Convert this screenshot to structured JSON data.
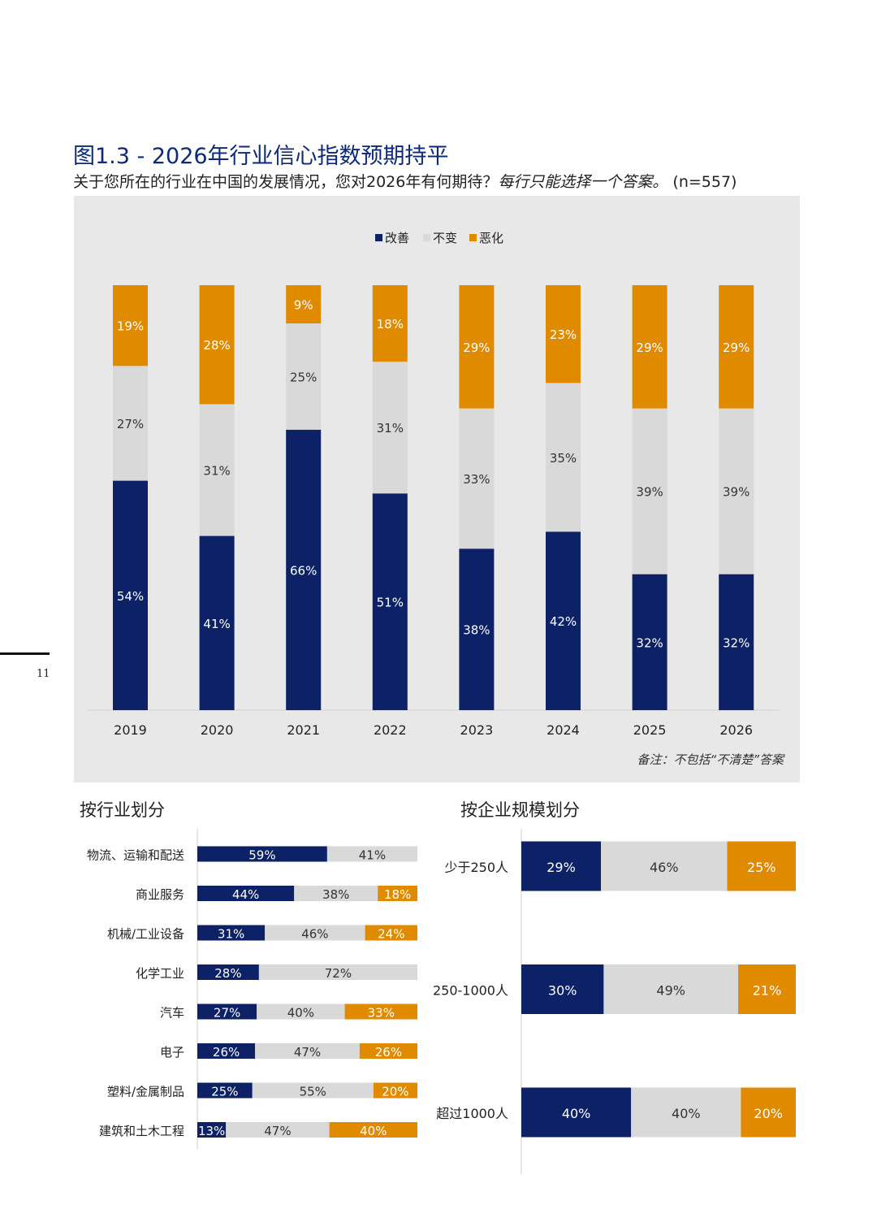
{
  "page": {
    "number": "11"
  },
  "header": {
    "title": "图1.3 - 2026年行业信心指数预期持平",
    "subtitle_main": "关于您所在的行业在中国的发展情况，您对2026年有何期待？",
    "subtitle_italic": "每行只能选择一个答案。",
    "subtitle_n": "(n=557)"
  },
  "colors": {
    "improve": "#0d2166",
    "same": "#d9d9d9",
    "worse": "#e08a00",
    "panel": "#e8e8e8"
  },
  "chart_data": [
    {
      "type": "bar",
      "stacked": true,
      "legend": [
        "改善",
        "不变",
        "恶化"
      ],
      "legend_position": "top-center",
      "categories": [
        "2019",
        "2020",
        "2021",
        "2022",
        "2023",
        "2024",
        "2025",
        "2026"
      ],
      "series": [
        {
          "name": "改善",
          "values": [
            54,
            41,
            66,
            51,
            38,
            42,
            32,
            32
          ]
        },
        {
          "name": "不变",
          "values": [
            27,
            31,
            25,
            31,
            33,
            35,
            39,
            39
          ]
        },
        {
          "name": "恶化",
          "values": [
            19,
            28,
            9,
            18,
            29,
            23,
            29,
            29
          ]
        }
      ],
      "note": "备注：不包括“不清楚”答案"
    },
    {
      "type": "bar",
      "orientation": "horizontal",
      "stacked": true,
      "title": "按行业划分",
      "categories": [
        "物流、运输和配送",
        "商业服务",
        "机械/工业设备",
        "化学工业",
        "汽车",
        "电子",
        "塑料/金属制品",
        "建筑和土木工程"
      ],
      "series": [
        {
          "name": "改善",
          "values": [
            59,
            44,
            31,
            28,
            27,
            26,
            25,
            13
          ]
        },
        {
          "name": "不变",
          "values": [
            41,
            38,
            46,
            72,
            40,
            47,
            55,
            47
          ]
        },
        {
          "name": "恶化",
          "values": [
            0,
            18,
            24,
            0,
            33,
            26,
            20,
            40
          ]
        }
      ]
    },
    {
      "type": "bar",
      "orientation": "horizontal",
      "stacked": true,
      "title": "按企业规模划分",
      "categories": [
        "少于250人",
        "250-1000人",
        "超过1000人"
      ],
      "series": [
        {
          "name": "改善",
          "values": [
            29,
            30,
            40
          ]
        },
        {
          "name": "不变",
          "values": [
            46,
            49,
            40
          ]
        },
        {
          "name": "恶化",
          "values": [
            25,
            21,
            20
          ]
        }
      ]
    }
  ]
}
